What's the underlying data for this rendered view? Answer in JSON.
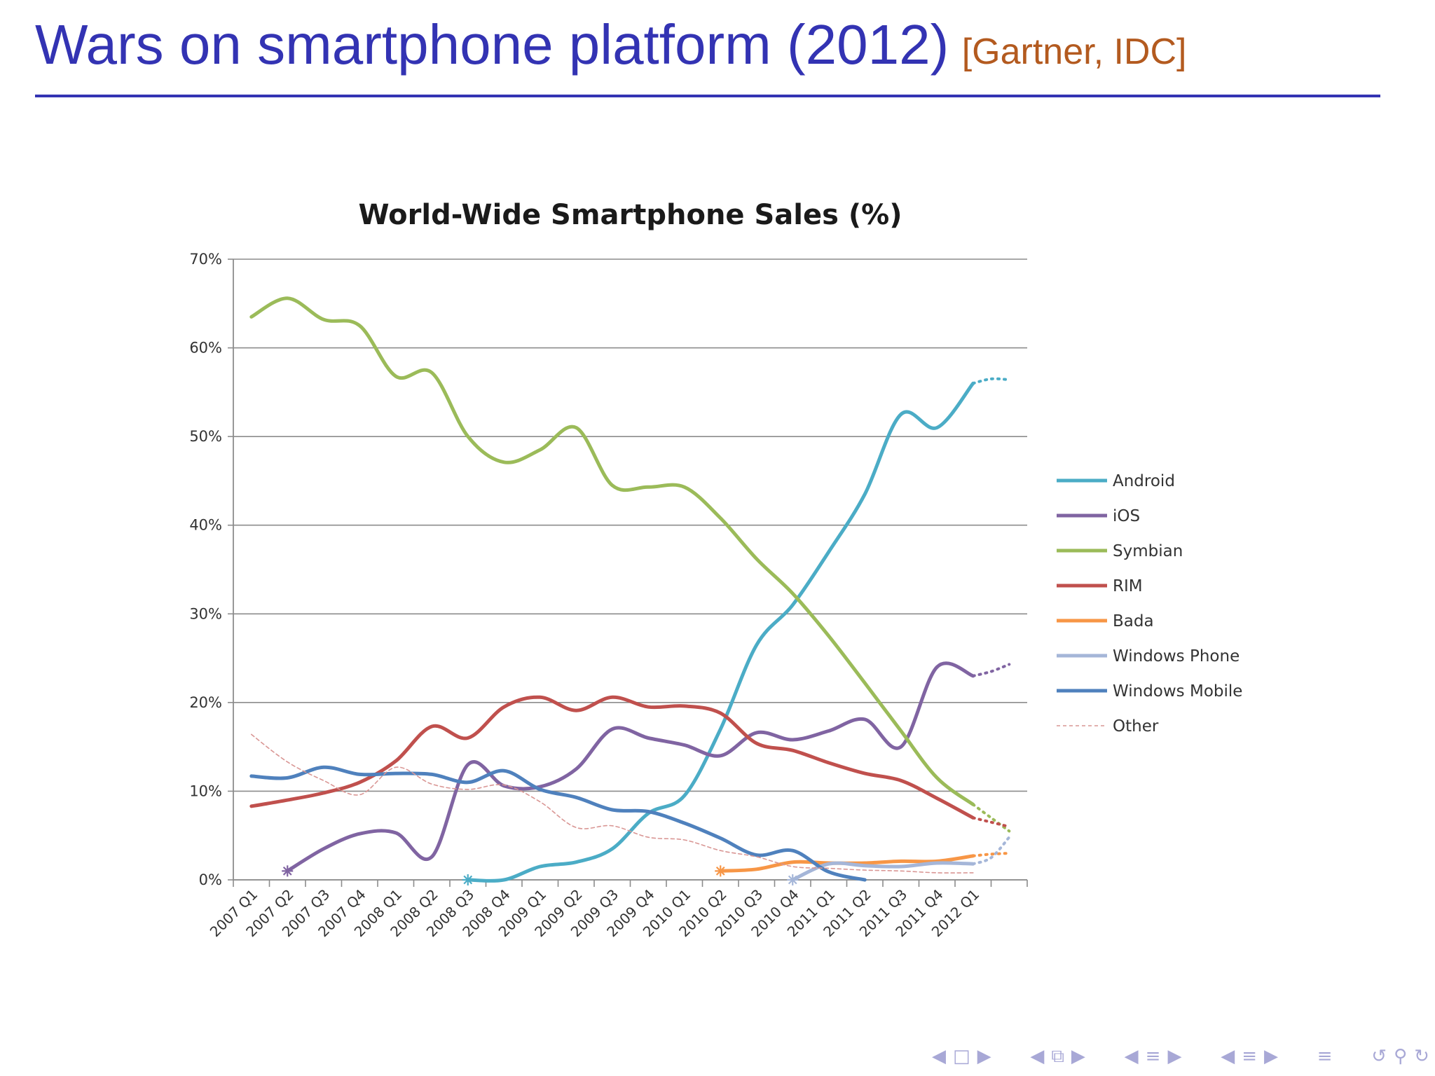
{
  "slide": {
    "title": "Wars on smartphone platform (2012)",
    "source": "[Gartner, IDC]",
    "title_color": "#3333b3",
    "source_color": "#b35a1f"
  },
  "chart_data": {
    "type": "line",
    "title": "World-Wide Smartphone Sales (%)",
    "xlabel": "",
    "ylabel": "",
    "ylim": [
      0,
      70
    ],
    "yticks": [
      0,
      10,
      20,
      30,
      40,
      50,
      60,
      70
    ],
    "ytick_labels": [
      "0%",
      "10%",
      "20%",
      "30%",
      "40%",
      "50%",
      "60%",
      "70%"
    ],
    "grid": true,
    "legend_position": "right",
    "categories": [
      "2007 Q1",
      "2007 Q2",
      "2007 Q3",
      "2007 Q4",
      "2008 Q1",
      "2008 Q2",
      "2008 Q3",
      "2008 Q4",
      "2009 Q1",
      "2009 Q2",
      "2009 Q3",
      "2009 Q4",
      "2010 Q1",
      "2010 Q2",
      "2010 Q3",
      "2010 Q4",
      "2011 Q1",
      "2011 Q2",
      "2011 Q3",
      "2011 Q4",
      "2012 Q1"
    ],
    "projection_label": "",
    "series": [
      {
        "name": "Android",
        "color": "#4bacc6",
        "style": "solid",
        "start_marker": true,
        "values": [
          null,
          null,
          null,
          null,
          null,
          null,
          0.0,
          0.0,
          1.5,
          2.0,
          3.5,
          7.5,
          9.5,
          17.0,
          26.5,
          31.0,
          37.0,
          43.5,
          52.5,
          51.0,
          56.0
        ],
        "projection": [
          56.5,
          56.4
        ]
      },
      {
        "name": "iOS",
        "color": "#8064a2",
        "style": "solid",
        "start_marker": true,
        "values": [
          null,
          1.0,
          3.5,
          5.2,
          5.3,
          2.6,
          13.0,
          10.6,
          10.5,
          12.5,
          17.0,
          16.0,
          15.2,
          14.0,
          16.6,
          15.8,
          16.8,
          18.1,
          15.0,
          24.0,
          23.0
        ],
        "projection": [
          23.5,
          24.3
        ]
      },
      {
        "name": "Symbian",
        "color": "#9bbb59",
        "style": "solid",
        "start_marker": false,
        "values": [
          63.5,
          65.6,
          63.2,
          62.5,
          56.8,
          57.2,
          50.0,
          47.1,
          48.5,
          51.0,
          44.5,
          44.3,
          44.3,
          40.8,
          36.2,
          32.3,
          27.5,
          22.2,
          16.8,
          11.5,
          8.5
        ],
        "projection": [
          7.0,
          5.5
        ]
      },
      {
        "name": "RIM",
        "color": "#c0504d",
        "style": "solid",
        "start_marker": false,
        "values": [
          8.3,
          9.0,
          9.8,
          11.0,
          13.4,
          17.3,
          16.0,
          19.5,
          20.6,
          19.1,
          20.6,
          19.5,
          19.6,
          18.8,
          15.4,
          14.6,
          13.2,
          12.0,
          11.2,
          9.2,
          7.0
        ],
        "projection": [
          6.5,
          6.0
        ]
      },
      {
        "name": "Bada",
        "color": "#f79646",
        "style": "solid",
        "start_marker": true,
        "values": [
          null,
          null,
          null,
          null,
          null,
          null,
          null,
          null,
          null,
          null,
          null,
          null,
          null,
          1.0,
          1.2,
          2.0,
          1.9,
          1.9,
          2.1,
          2.1,
          2.7
        ],
        "projection": [
          2.9,
          3.0
        ]
      },
      {
        "name": "Windows Phone",
        "color": "#a5b6d8",
        "style": "solid",
        "start_marker": true,
        "values": [
          null,
          null,
          null,
          null,
          null,
          null,
          null,
          null,
          null,
          null,
          null,
          null,
          null,
          null,
          null,
          0.0,
          1.8,
          1.6,
          1.5,
          1.9,
          1.8
        ],
        "projection": [
          2.5,
          4.8
        ]
      },
      {
        "name": "Windows Mobile",
        "color": "#4f81bd",
        "style": "solid",
        "start_marker": false,
        "values": [
          11.7,
          11.5,
          12.7,
          11.9,
          12.0,
          11.9,
          11.0,
          12.3,
          10.2,
          9.3,
          7.9,
          7.7,
          6.4,
          4.7,
          2.8,
          3.3,
          0.9,
          0.0,
          null,
          null,
          null
        ],
        "projection": null
      },
      {
        "name": "Other",
        "color": "#d99694",
        "style": "dashed",
        "start_marker": false,
        "values": [
          16.4,
          13.3,
          11.2,
          9.6,
          12.7,
          10.8,
          10.2,
          10.7,
          8.8,
          5.9,
          6.1,
          4.8,
          4.5,
          3.3,
          2.6,
          1.5,
          1.3,
          1.1,
          1.0,
          0.8,
          0.8
        ],
        "projection": null
      }
    ]
  },
  "nav": {
    "icons": [
      "nav-prev-icon",
      "nav-frame-icon",
      "nav-next-icon",
      "nav-section-prev-icon",
      "nav-section-icon",
      "nav-section-next-icon",
      "nav-subsection-prev-icon",
      "nav-subsection-icon",
      "nav-subsection-next-icon",
      "nav-align-icon",
      "nav-search-icon",
      "nav-loop-icon"
    ]
  }
}
